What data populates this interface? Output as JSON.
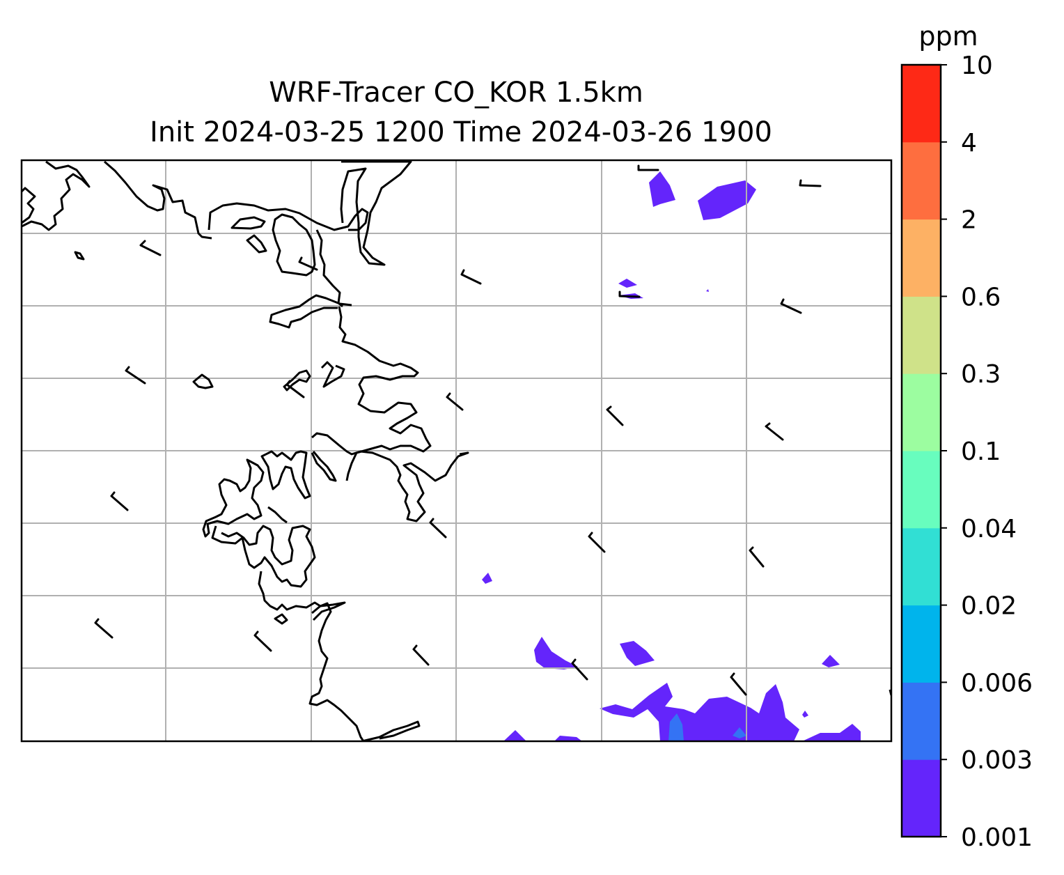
{
  "title_line1": "WRF-Tracer CO_KOR 1.5km",
  "title_line2": "Init 2024-03-25 1200 Time 2024-03-26 1900",
  "colorbar": {
    "unit": "ppm",
    "levels": [
      "0.001",
      "0.003",
      "0.006",
      "0.02",
      "0.04",
      "0.1",
      "0.3",
      "0.6",
      "2",
      "4",
      "10"
    ],
    "colors": [
      "#6425fb",
      "#3473f4",
      "#00b4ec",
      "#31dfd4",
      "#68fdbe",
      "#9cfda0",
      "#cfe289",
      "#fdb164",
      "#fe6e3f",
      "#fe2916"
    ]
  },
  "map": {
    "gridlines": true,
    "contour_color_present": "#6425fb",
    "contour_color_secondary": "#3473f4"
  }
}
